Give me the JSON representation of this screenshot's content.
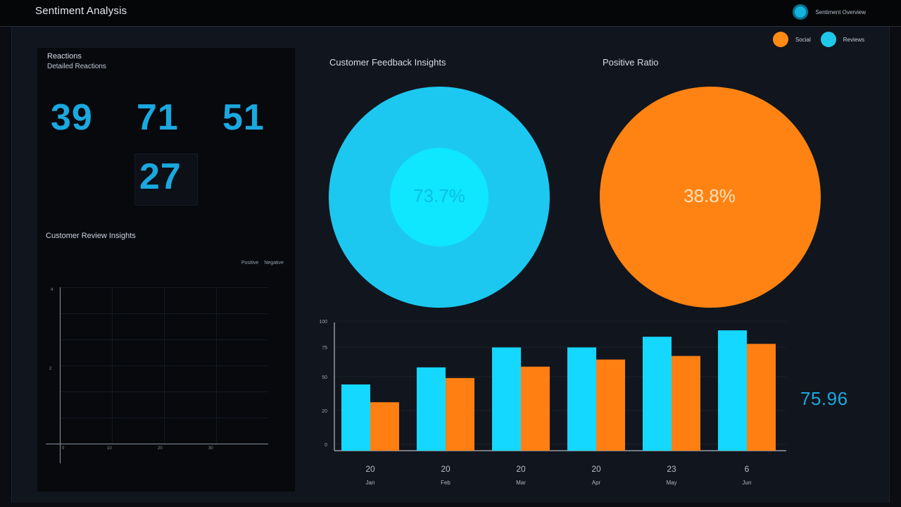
{
  "header": {
    "title": "Sentiment Analysis",
    "right_link": "Sentiment Overview"
  },
  "legend": {
    "items": [
      {
        "label": "Social",
        "color": "#ff8a14"
      },
      {
        "label": "Reviews",
        "color": "#1fc7e8"
      }
    ]
  },
  "left_panel": {
    "title": "Reactions",
    "subtitle": "Detailed Reactions",
    "metrics": [
      "39",
      "71",
      "51",
      "27"
    ],
    "section_title": "Customer Review Insights",
    "mini_legend": [
      "Positive",
      "Negative"
    ],
    "y_ticks": [
      "4",
      "2"
    ],
    "x_ticks": [
      "0",
      "10",
      "20",
      "30"
    ]
  },
  "donut_charts": {
    "left_title": "Customer Feedback Insights",
    "right_title": "Positive Ratio",
    "left_value": "73.7%",
    "right_value": "38.8%",
    "left_color": "#1cc8f0",
    "right_color": "#ff8312"
  },
  "chart_data": {
    "type": "bar",
    "categories": [
      "Jan",
      "Feb",
      "Mar",
      "Apr",
      "May",
      "Jun"
    ],
    "top_tick_labels": [
      "20",
      "20",
      "20",
      "20",
      "23",
      "6"
    ],
    "series": [
      {
        "color": "#14d8ff",
        "values": [
          93,
          117,
          145,
          145,
          160,
          169
        ]
      },
      {
        "color": "#ff7f12",
        "values": [
          68,
          102,
          118,
          128,
          133,
          150
        ]
      }
    ],
    "y_ticks": [
      "0",
      "20",
      "50",
      "75",
      "100"
    ],
    "ylim": [
      0,
      180
    ],
    "grid": true
  },
  "side_value": "75.96"
}
